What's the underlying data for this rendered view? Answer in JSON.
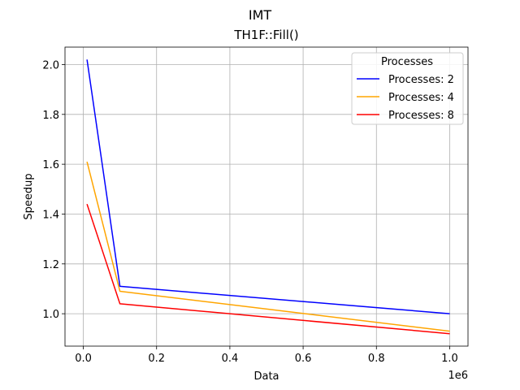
{
  "chart_data": {
    "type": "line",
    "title": "IMT",
    "subtitle": "TH1F::Fill()",
    "xlabel": "Data",
    "ylabel": "Speedup",
    "x_offset_label": "1e6",
    "xlim": [
      -0.05,
      1.05
    ],
    "ylim": [
      0.87,
      2.07
    ],
    "x_ticks": [
      0.0,
      0.2,
      0.4,
      0.6,
      0.8,
      1.0
    ],
    "x_tick_labels": [
      "0.0",
      "0.2",
      "0.4",
      "0.6",
      "0.8",
      "1.0"
    ],
    "y_ticks": [
      1.0,
      1.2,
      1.4,
      1.6,
      1.8,
      2.0
    ],
    "y_tick_labels": [
      "1.0",
      "1.2",
      "1.4",
      "1.6",
      "1.8",
      "2.0"
    ],
    "grid": true,
    "legend": {
      "title": "Processes",
      "position": "top-right"
    },
    "x": [
      0.01,
      0.1,
      1.0
    ],
    "series": [
      {
        "name": "Processes: 2",
        "color": "#0000ff",
        "values": [
          2.02,
          1.11,
          1.0
        ]
      },
      {
        "name": "Processes: 4",
        "color": "#ffa500",
        "values": [
          1.61,
          1.09,
          0.93
        ]
      },
      {
        "name": "Processes: 8",
        "color": "#ff0000",
        "values": [
          1.44,
          1.04,
          0.92
        ]
      }
    ]
  }
}
